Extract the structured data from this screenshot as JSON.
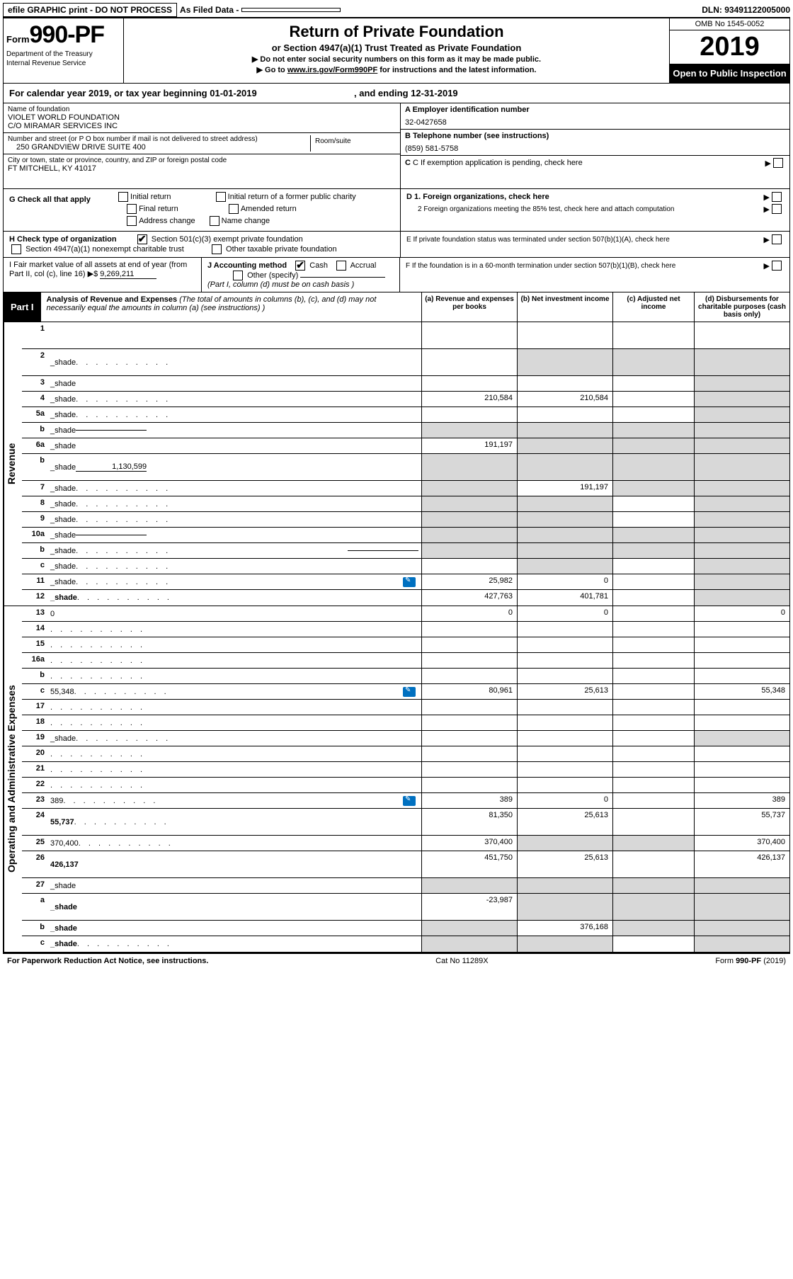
{
  "topbar": {
    "efile": "efile GRAPHIC print - DO NOT PROCESS",
    "asfiled_label": "As Filed Data -",
    "dln_label": "DLN:",
    "dln": "93491122005000"
  },
  "header": {
    "form_label": "Form",
    "form_number": "990-PF",
    "dept1": "Department of the Treasury",
    "dept2": "Internal Revenue Service",
    "title": "Return of Private Foundation",
    "subtitle": "or Section 4947(a)(1) Trust Treated as Private Foundation",
    "note1": "▶ Do not enter social security numbers on this form as it may be made public.",
    "note2_prefix": "▶ Go to ",
    "note2_link": "www.irs.gov/Form990PF",
    "note2_suffix": " for instructions and the latest information.",
    "omb": "OMB No 1545-0052",
    "year": "2019",
    "open": "Open to Public Inspection"
  },
  "cal": {
    "prefix": "For calendar year 2019, or tax year beginning ",
    "begin": "01-01-2019",
    "mid": " , and ending ",
    "end": "12-31-2019"
  },
  "name_block": {
    "label": "Name of foundation",
    "line1": "VIOLET WORLD FOUNDATION",
    "line2": "C/O MIRAMAR SERVICES INC",
    "addr_label": "Number and street (or P O  box number if mail is not delivered to street address)",
    "room_label": "Room/suite",
    "addr": "250 GRANDVIEW DRIVE SUITE 400",
    "city_label": "City or town, state or province, country, and ZIP or foreign postal code",
    "city": "FT MITCHELL, KY  41017"
  },
  "right_block": {
    "a_label": "A Employer identification number",
    "a_val": "32-0427658",
    "b_label": "B Telephone number (see instructions)",
    "b_val": "(859) 581-5758",
    "c_label": "C If exemption application is pending, check here",
    "d1": "D 1. Foreign organizations, check here",
    "d2": "2  Foreign organizations meeting the 85% test, check here and attach computation",
    "e": "E  If private foundation status was terminated under section 507(b)(1)(A), check here",
    "f": "F  If the foundation is in a 60-month termination under section 507(b)(1)(B), check here"
  },
  "g": {
    "label": "G Check all that apply",
    "opts": [
      "Initial return",
      "Initial return of a former public charity",
      "Final return",
      "Amended return",
      "Address change",
      "Name change"
    ]
  },
  "h": {
    "label": "H Check type of organization",
    "opt1": "Section 501(c)(3) exempt private foundation",
    "opt2": "Section 4947(a)(1) nonexempt charitable trust",
    "opt3": "Other taxable private foundation"
  },
  "i": {
    "label": "I Fair market value of all assets at end of year (from Part II, col  (c), line 16)  ▶$  ",
    "val": "9,269,211"
  },
  "j": {
    "label": "J Accounting method",
    "cash": "Cash",
    "accrual": "Accrual",
    "other": "Other (specify)",
    "note": "(Part I, column (d) must be on cash basis )"
  },
  "part1": {
    "tag": "Part I",
    "title": "Analysis of Revenue and Expenses",
    "desc": " (The total of amounts in columns (b), (c), and (d) may not necessarily equal the amounts in column (a) (see instructions) )",
    "col_a": "(a)   Revenue and expenses per books",
    "col_b": "(b)   Net investment income",
    "col_c": "(c)   Adjusted net income",
    "col_d": "(d)   Disbursements for charitable purposes (cash basis only)"
  },
  "side_labels": {
    "revenue": "Revenue",
    "expenses": "Operating and Administrative Expenses"
  },
  "rows": [
    {
      "n": "1",
      "d": "",
      "a": "",
      "b": "",
      "c": "",
      "tall": true
    },
    {
      "n": "2",
      "d": "_shade",
      "dots": true,
      "a": "",
      "b": "_shade",
      "c": "_shade",
      "tall": true,
      "bold_not": true
    },
    {
      "n": "3",
      "d": "_shade",
      "a": "",
      "b": "",
      "c": ""
    },
    {
      "n": "4",
      "d": "_shade",
      "dots": true,
      "a": "210,584",
      "b": "210,584",
      "c": ""
    },
    {
      "n": "5a",
      "d": "_shade",
      "dots": true,
      "a": "",
      "b": "",
      "c": ""
    },
    {
      "n": "b",
      "d": "_shade",
      "ul": "",
      "a": "_shade",
      "b": "_shade",
      "c": "_shade"
    },
    {
      "n": "6a",
      "d": "_shade",
      "a": "191,197",
      "b": "_shade",
      "c": "_shade"
    },
    {
      "n": "b",
      "d": "_shade",
      "ul": "1,130,599",
      "a": "_shade",
      "b": "_shade",
      "c": "_shade",
      "tall": true
    },
    {
      "n": "7",
      "d": "_shade",
      "dots": true,
      "a": "_shade",
      "b": "191,197",
      "c": "_shade"
    },
    {
      "n": "8",
      "d": "_shade",
      "dots": true,
      "a": "_shade",
      "b": "_shade",
      "c": ""
    },
    {
      "n": "9",
      "d": "_shade",
      "dots": true,
      "a": "_shade",
      "b": "_shade",
      "c": ""
    },
    {
      "n": "10a",
      "d": "_shade",
      "ul": "",
      "a": "_shade",
      "b": "_shade",
      "c": "_shade"
    },
    {
      "n": "b",
      "d": "_shade",
      "dots": true,
      "ul": "",
      "a": "_shade",
      "b": "_shade",
      "c": "_shade"
    },
    {
      "n": "c",
      "d": "_shade",
      "dots": true,
      "a": "",
      "b": "_shade",
      "c": ""
    },
    {
      "n": "11",
      "d": "_shade",
      "dots": true,
      "icon": true,
      "a": "25,982",
      "b": "0",
      "c": ""
    },
    {
      "n": "12",
      "d": "_shade",
      "dots": true,
      "bold": true,
      "a": "427,763",
      "b": "401,781",
      "c": ""
    }
  ],
  "exp_rows": [
    {
      "n": "13",
      "d": "0",
      "a": "0",
      "b": "0",
      "c": ""
    },
    {
      "n": "14",
      "d": "",
      "dots": true,
      "a": "",
      "b": "",
      "c": ""
    },
    {
      "n": "15",
      "d": "",
      "dots": true,
      "a": "",
      "b": "",
      "c": ""
    },
    {
      "n": "16a",
      "d": "",
      "dots": true,
      "a": "",
      "b": "",
      "c": ""
    },
    {
      "n": "b",
      "d": "",
      "dots": true,
      "a": "",
      "b": "",
      "c": ""
    },
    {
      "n": "c",
      "d": "55,348",
      "dots": true,
      "icon": true,
      "a": "80,961",
      "b": "25,613",
      "c": ""
    },
    {
      "n": "17",
      "d": "",
      "dots": true,
      "a": "",
      "b": "",
      "c": ""
    },
    {
      "n": "18",
      "d": "",
      "dots": true,
      "a": "",
      "b": "",
      "c": ""
    },
    {
      "n": "19",
      "d": "_shade",
      "dots": true,
      "a": "",
      "b": "",
      "c": ""
    },
    {
      "n": "20",
      "d": "",
      "dots": true,
      "a": "",
      "b": "",
      "c": ""
    },
    {
      "n": "21",
      "d": "",
      "dots": true,
      "a": "",
      "b": "",
      "c": ""
    },
    {
      "n": "22",
      "d": "",
      "dots": true,
      "a": "",
      "b": "",
      "c": ""
    },
    {
      "n": "23",
      "d": "389",
      "dots": true,
      "icon": true,
      "a": "389",
      "b": "0",
      "c": ""
    },
    {
      "n": "24",
      "d": "55,737",
      "dots": true,
      "bold": true,
      "a": "81,350",
      "b": "25,613",
      "c": "",
      "tall": true
    },
    {
      "n": "25",
      "d": "370,400",
      "dots": true,
      "a": "370,400",
      "b": "_shade",
      "c": "_shade"
    },
    {
      "n": "26",
      "d": "426,137",
      "bold": true,
      "a": "451,750",
      "b": "25,613",
      "c": "",
      "tall": true
    },
    {
      "n": "27",
      "d": "_shade",
      "a": "_shade",
      "b": "_shade",
      "c": "_shade"
    },
    {
      "n": "a",
      "d": "_shade",
      "bold": true,
      "a": "-23,987",
      "b": "_shade",
      "c": "_shade",
      "tall": true
    },
    {
      "n": "b",
      "d": "_shade",
      "bold": true,
      "a": "_shade",
      "b": "376,168",
      "c": "_shade"
    },
    {
      "n": "c",
      "d": "_shade",
      "dots": true,
      "bold": true,
      "a": "_shade",
      "b": "_shade",
      "c": ""
    }
  ],
  "footer": {
    "left": "For Paperwork Reduction Act Notice, see instructions.",
    "mid": "Cat  No  11289X",
    "right_label": "Form ",
    "right_form": "990-PF",
    "right_year": " (2019)"
  }
}
